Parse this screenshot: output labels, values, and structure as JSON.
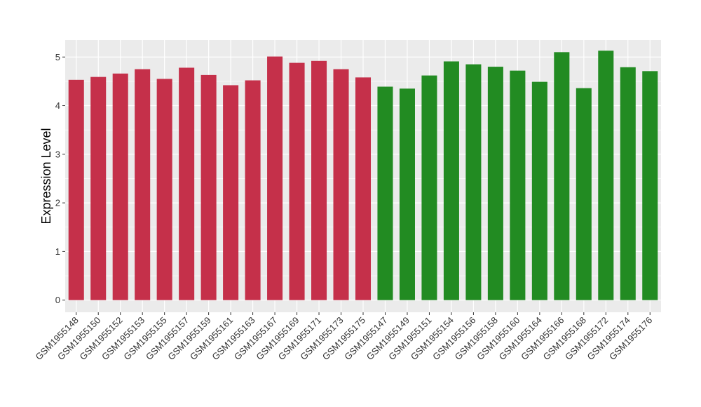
{
  "chart_data": {
    "type": "bar",
    "title": "",
    "xlabel": "",
    "ylabel": "Expression Level",
    "ylim": [
      -0.25,
      5.35
    ],
    "yticks": [
      0,
      1,
      2,
      3,
      4,
      5
    ],
    "grid": true,
    "legend": "none",
    "colors": {
      "group1": "#C5304A",
      "group2": "#228B22",
      "panel": "#EBEBEB",
      "gridline": "#FFFFFF"
    },
    "categories": [
      "GSM1955148",
      "GSM1955150",
      "GSM1955152",
      "GSM1955153",
      "GSM1955155",
      "GSM1955157",
      "GSM1955159",
      "GSM1955161",
      "GSM1955163",
      "GSM1955167",
      "GSM1955169",
      "GSM1955171",
      "GSM1955173",
      "GSM1955175",
      "GSM1955147",
      "GSM1955149",
      "GSM1955151",
      "GSM1955154",
      "GSM1955156",
      "GSM1955158",
      "GSM1955160",
      "GSM1955164",
      "GSM1955166",
      "GSM1955168",
      "GSM1955172",
      "GSM1955174",
      "GSM1955176"
    ],
    "values": [
      4.53,
      4.59,
      4.66,
      4.75,
      4.55,
      4.78,
      4.63,
      4.42,
      4.52,
      5.01,
      4.88,
      4.92,
      4.75,
      4.58,
      4.39,
      4.35,
      4.62,
      4.91,
      4.85,
      4.8,
      4.72,
      4.49,
      5.1,
      4.36,
      5.13,
      4.79,
      4.71
    ],
    "groups": [
      "group1",
      "group1",
      "group1",
      "group1",
      "group1",
      "group1",
      "group1",
      "group1",
      "group1",
      "group1",
      "group1",
      "group1",
      "group1",
      "group1",
      "group2",
      "group2",
      "group2",
      "group2",
      "group2",
      "group2",
      "group2",
      "group2",
      "group2",
      "group2",
      "group2",
      "group2",
      "group2"
    ]
  }
}
